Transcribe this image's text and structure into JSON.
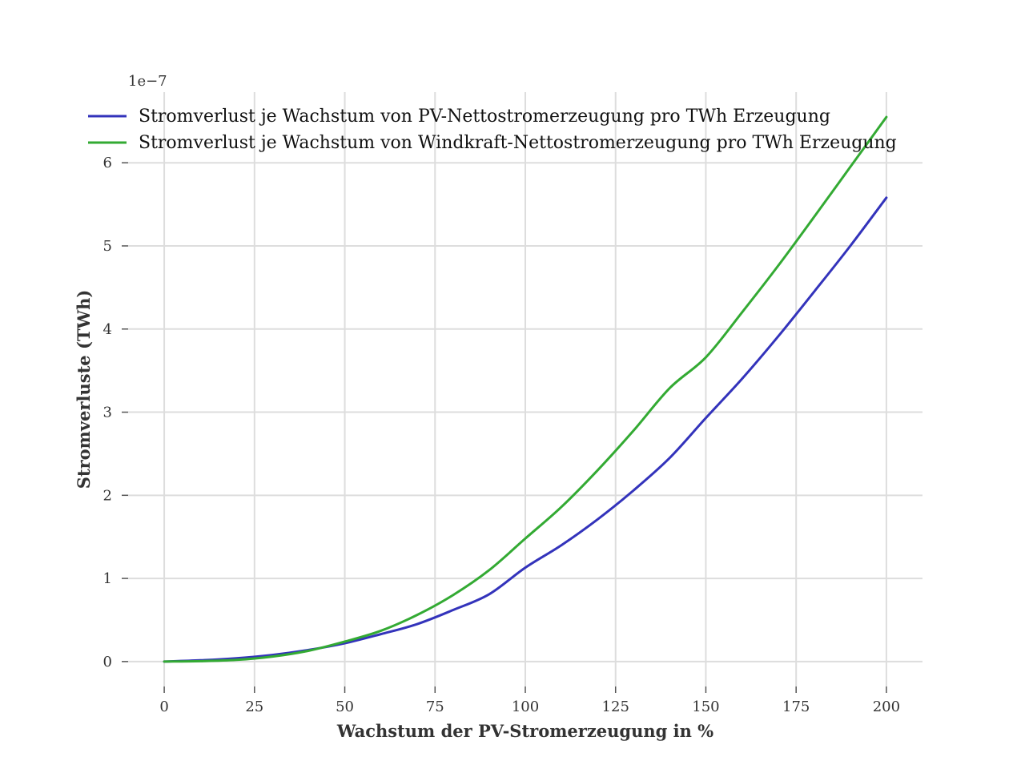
{
  "chart_data": {
    "type": "line",
    "xlabel": "Wachstum der PV-Stromerzeugung in %",
    "ylabel": "Stromverluste (TWh)",
    "y_offset_text": "1e−7",
    "xlim": [
      -10,
      210
    ],
    "ylim": [
      -0.3,
      6.85
    ],
    "xticks": [
      0,
      25,
      50,
      75,
      100,
      125,
      150,
      175,
      200
    ],
    "xtick_labels": [
      "0",
      "25",
      "50",
      "75",
      "100",
      "125",
      "150",
      "175",
      "200"
    ],
    "yticks": [
      0,
      1,
      2,
      3,
      4,
      5,
      6
    ],
    "ytick_labels": [
      "0",
      "1",
      "2",
      "3",
      "4",
      "5",
      "6"
    ],
    "grid": true,
    "legend_position": "top-left",
    "x": [
      0,
      10,
      20,
      30,
      40,
      50,
      60,
      70,
      80,
      90,
      100,
      110,
      120,
      130,
      140,
      150,
      160,
      170,
      180,
      190,
      200
    ],
    "series": [
      {
        "name": "Stromverlust je Wachstum von PV-Nettostromerzeugung pro TWh Erzeugung",
        "color": "#3333bb",
        "values": [
          0.0,
          0.015,
          0.04,
          0.08,
          0.14,
          0.22,
          0.33,
          0.45,
          0.62,
          0.81,
          1.13,
          1.4,
          1.71,
          2.06,
          2.45,
          2.93,
          3.4,
          3.91,
          4.45,
          5.0,
          5.58
        ]
      },
      {
        "name": "Stromverlust je Wachstum von Windkraft-Nettostromerzeugung pro TWh Erzeugung",
        "color": "#33aa33",
        "values": [
          0.0,
          0.005,
          0.02,
          0.06,
          0.13,
          0.24,
          0.37,
          0.56,
          0.8,
          1.1,
          1.48,
          1.86,
          2.3,
          2.78,
          3.29,
          3.66,
          4.2,
          4.76,
          5.35,
          5.95,
          6.55
        ]
      }
    ]
  }
}
